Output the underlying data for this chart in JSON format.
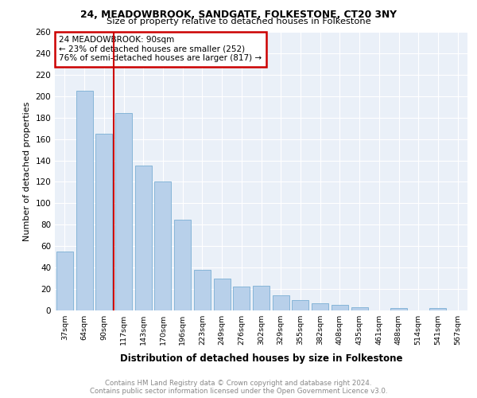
{
  "title1": "24, MEADOWBROOK, SANDGATE, FOLKESTONE, CT20 3NY",
  "title2": "Size of property relative to detached houses in Folkestone",
  "xlabel": "Distribution of detached houses by size in Folkestone",
  "ylabel": "Number of detached properties",
  "categories": [
    "37sqm",
    "64sqm",
    "90sqm",
    "117sqm",
    "143sqm",
    "170sqm",
    "196sqm",
    "223sqm",
    "249sqm",
    "276sqm",
    "302sqm",
    "329sqm",
    "355sqm",
    "382sqm",
    "408sqm",
    "435sqm",
    "461sqm",
    "488sqm",
    "514sqm",
    "541sqm",
    "567sqm"
  ],
  "values": [
    55,
    205,
    165,
    184,
    135,
    120,
    85,
    38,
    30,
    22,
    23,
    14,
    10,
    7,
    5,
    3,
    0,
    2,
    0,
    2,
    0
  ],
  "bar_color": "#b8d0ea",
  "bar_edge_color": "#7aafd4",
  "annotation_title": "24 MEADOWBROOK: 90sqm",
  "annotation_line1": "← 23% of detached houses are smaller (252)",
  "annotation_line2": "76% of semi-detached houses are larger (817) →",
  "box_color": "#cc0000",
  "ylim": [
    0,
    260
  ],
  "yticks": [
    0,
    20,
    40,
    60,
    80,
    100,
    120,
    140,
    160,
    180,
    200,
    220,
    240,
    260
  ],
  "footnote1": "Contains HM Land Registry data © Crown copyright and database right 2024.",
  "footnote2": "Contains public sector information licensed under the Open Government Licence v3.0.",
  "bg_color": "#eaf0f8",
  "grid_color": "#ffffff",
  "highlight_bar_idx": 2
}
